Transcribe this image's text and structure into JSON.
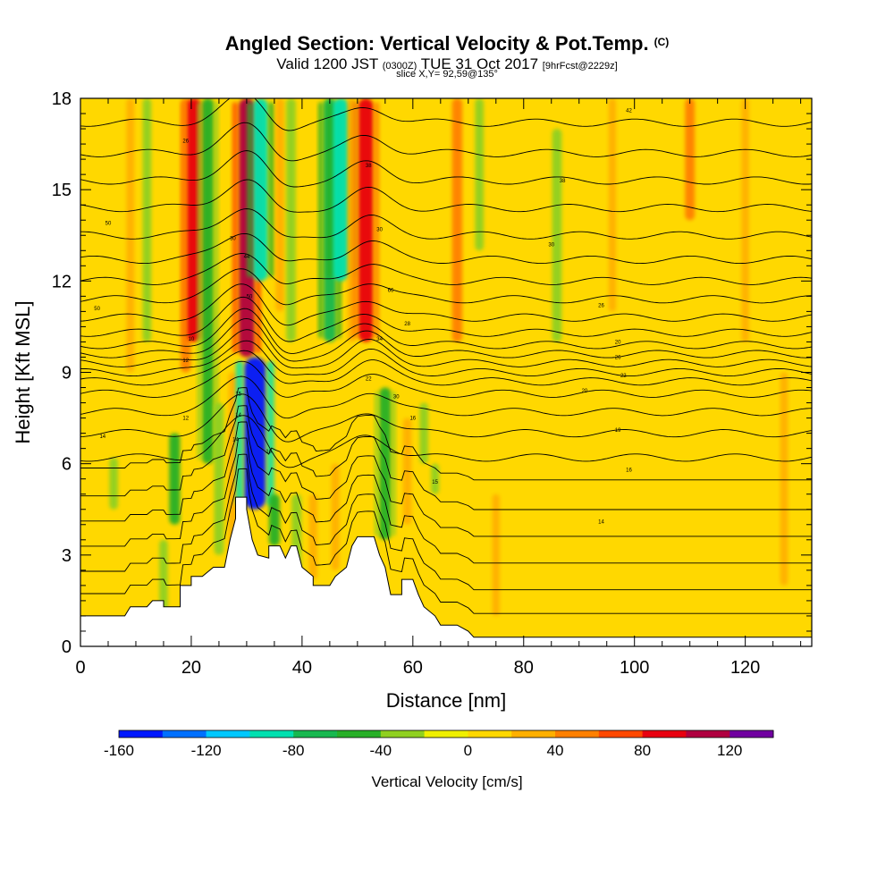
{
  "header": {
    "title": "Angled Section: Vertical Velocity & Pot.Temp.",
    "title_units": "(C)",
    "valid_prefix": "Valid 1200 JST",
    "valid_utc": "(0300Z)",
    "valid_date": "TUE 31 Oct 2017",
    "forecast": "[9hrFcst@2229z]",
    "slice": "slice X,Y= 92,59@135°"
  },
  "chart_data": {
    "type": "heatmap",
    "xlabel": "Distance [nm]",
    "ylabel": "Height [Kft MSL]",
    "xlim": [
      0,
      132
    ],
    "ylim": [
      0,
      18
    ],
    "x_ticks": [
      "0",
      "20",
      "40",
      "60",
      "80",
      "100",
      "120"
    ],
    "y_ticks": [
      "0",
      "3",
      "6",
      "9",
      "12",
      "15",
      "18"
    ],
    "colorbar": {
      "label": "Vertical Velocity [cm/s]",
      "ticks": [
        "-160",
        "-120",
        "-80",
        "-40",
        "0",
        "40",
        "80",
        "120"
      ],
      "bins": [
        -160,
        -140,
        -120,
        -100,
        -80,
        -60,
        -40,
        -20,
        0,
        20,
        40,
        60,
        80,
        100,
        120,
        140
      ],
      "colors": [
        "#0018ff",
        "#0070ff",
        "#00c8ff",
        "#00e0b0",
        "#18b850",
        "#28b028",
        "#90d020",
        "#f0f000",
        "#ffd800",
        "#ffb000",
        "#ff8000",
        "#ff4800",
        "#e80010",
        "#b00040",
        "#7000a0"
      ]
    },
    "background_level": 0,
    "terrain_profile": [
      [
        0,
        1
      ],
      [
        8,
        1
      ],
      [
        9,
        1.3
      ],
      [
        12,
        1.3
      ],
      [
        13,
        1.5
      ],
      [
        15,
        1.5
      ],
      [
        15,
        1.3
      ],
      [
        18,
        1.3
      ],
      [
        18,
        2
      ],
      [
        20,
        2
      ],
      [
        20,
        2.3
      ],
      [
        22,
        2.3
      ],
      [
        24,
        2.6
      ],
      [
        26,
        2.6
      ],
      [
        27,
        3.5
      ],
      [
        28,
        4.2
      ],
      [
        28,
        4.9
      ],
      [
        30,
        4.9
      ],
      [
        30,
        4.5
      ],
      [
        31,
        3.5
      ],
      [
        32,
        3
      ],
      [
        34,
        2.9
      ],
      [
        34,
        3.3
      ],
      [
        36,
        3.3
      ],
      [
        37,
        2.9
      ],
      [
        38,
        3.3
      ],
      [
        39,
        3.3
      ],
      [
        40,
        2.6
      ],
      [
        42,
        2.3
      ],
      [
        42,
        2
      ],
      [
        45,
        2
      ],
      [
        46,
        2.3
      ],
      [
        48,
        2.6
      ],
      [
        49,
        3.3
      ],
      [
        50,
        3.6
      ],
      [
        53,
        3.6
      ],
      [
        54,
        3
      ],
      [
        55,
        2.6
      ],
      [
        56,
        1.7
      ],
      [
        58,
        1.7
      ],
      [
        58,
        2.2
      ],
      [
        60,
        2.2
      ],
      [
        61,
        1.7
      ],
      [
        62,
        1.3
      ],
      [
        64,
        1
      ],
      [
        65,
        0.7
      ],
      [
        68,
        0.7
      ],
      [
        70,
        0.5
      ],
      [
        71,
        0.3
      ],
      [
        132,
        0.3
      ]
    ],
    "velocity_features": [
      {
        "x": 6,
        "zbot": 4.5,
        "ztop": 6.2,
        "v": -30
      },
      {
        "x": 9,
        "zbot": 9,
        "ztop": 18,
        "v": 25
      },
      {
        "x": 12,
        "zbot": 10,
        "ztop": 18,
        "v": -30
      },
      {
        "x": 15,
        "zbot": 1,
        "ztop": 3.5,
        "v": -30
      },
      {
        "x": 17,
        "zbot": 4,
        "ztop": 7,
        "v": -50
      },
      {
        "x": 19,
        "zbot": 9,
        "ztop": 18,
        "v": 45
      },
      {
        "x": 20.5,
        "zbot": 10,
        "ztop": 18,
        "v": 80
      },
      {
        "x": 23,
        "zbot": 6,
        "ztop": 18,
        "v": -60
      },
      {
        "x": 25,
        "zbot": 3,
        "ztop": 8,
        "v": -40
      },
      {
        "x": 27.5,
        "zbot": 3,
        "ztop": 9,
        "v": 30
      },
      {
        "x": 30,
        "zbot": 9.5,
        "ztop": 18,
        "v": 100
      },
      {
        "x": 31.5,
        "zbot": 4.5,
        "ztop": 9.5,
        "v": -150
      },
      {
        "x": 32.5,
        "zbot": 12,
        "ztop": 18,
        "v": -90
      },
      {
        "x": 35,
        "zbot": 3.3,
        "ztop": 5,
        "v": -50
      },
      {
        "x": 36,
        "zbot": 11,
        "ztop": 18,
        "v": 30
      },
      {
        "x": 38,
        "zbot": 10,
        "ztop": 18,
        "v": -40
      },
      {
        "x": 39,
        "zbot": 2.5,
        "ztop": 5,
        "v": -40
      },
      {
        "x": 42,
        "zbot": 2.2,
        "ztop": 5,
        "v": 30
      },
      {
        "x": 45,
        "zbot": 10,
        "ztop": 18,
        "v": -70
      },
      {
        "x": 46,
        "zbot": 2.5,
        "ztop": 6,
        "v": 25
      },
      {
        "x": 47,
        "zbot": 12,
        "ztop": 18,
        "v": -100
      },
      {
        "x": 49,
        "zbot": 10,
        "ztop": 18,
        "v": 30
      },
      {
        "x": 51.5,
        "zbot": 10,
        "ztop": 18,
        "v": 90
      },
      {
        "x": 55,
        "zbot": 3.5,
        "ztop": 8.5,
        "v": -60
      },
      {
        "x": 59,
        "zbot": 4,
        "ztop": 7.5,
        "v": 30
      },
      {
        "x": 62,
        "zbot": 6,
        "ztop": 8,
        "v": -30
      },
      {
        "x": 64,
        "zbot": 5,
        "ztop": 6,
        "v": -25
      },
      {
        "x": 68,
        "zbot": 10,
        "ztop": 18,
        "v": 45
      },
      {
        "x": 72,
        "zbot": 13,
        "ztop": 18,
        "v": -30
      },
      {
        "x": 75,
        "zbot": 1,
        "ztop": 5,
        "v": 20
      },
      {
        "x": 86,
        "zbot": 10,
        "ztop": 17,
        "v": -40
      },
      {
        "x": 96,
        "zbot": 11,
        "ztop": 18,
        "v": 20
      },
      {
        "x": 110,
        "zbot": 14,
        "ztop": 18,
        "v": 40
      },
      {
        "x": 120,
        "zbot": 10,
        "ztop": 18,
        "v": 20
      },
      {
        "x": 127,
        "zbot": 2,
        "ztop": 9,
        "v": 20
      }
    ],
    "theta_contour_levels": [
      0.8,
      1.6,
      2.5,
      3.4,
      4.3,
      5.3,
      6.2,
      7.0,
      7.7,
      8.3,
      8.7,
      9.0,
      9.3,
      9.6,
      9.9,
      10.3,
      10.8,
      11.4,
      12.0,
      12.7,
      13.5,
      14.4,
      15.3,
      16.2,
      17.2
    ],
    "contour_labels": [
      {
        "x": 5,
        "z": 13.9,
        "text": "50"
      },
      {
        "x": 3,
        "z": 11.1,
        "text": "50"
      },
      {
        "x": 19,
        "z": 16.6,
        "text": "26"
      },
      {
        "x": 27.5,
        "z": 13.4,
        "text": "30"
      },
      {
        "x": 30,
        "z": 12.8,
        "text": "44"
      },
      {
        "x": 30.5,
        "z": 11.5,
        "text": "50"
      },
      {
        "x": 52,
        "z": 15.8,
        "text": "38"
      },
      {
        "x": 54,
        "z": 13.7,
        "text": "30"
      },
      {
        "x": 56,
        "z": 11.7,
        "text": "66"
      },
      {
        "x": 54,
        "z": 10.1,
        "text": "34"
      },
      {
        "x": 59,
        "z": 10.6,
        "text": "28"
      },
      {
        "x": 52,
        "z": 8.8,
        "text": "22"
      },
      {
        "x": 57,
        "z": 8.2,
        "text": "30"
      },
      {
        "x": 60,
        "z": 7.5,
        "text": "16"
      },
      {
        "x": 64,
        "z": 5.4,
        "text": "15"
      },
      {
        "x": 69,
        "z": 16.3,
        "text": ""
      },
      {
        "x": 87,
        "z": 15.3,
        "text": "38"
      },
      {
        "x": 85,
        "z": 13.2,
        "text": "30"
      },
      {
        "x": 94,
        "z": 11.2,
        "text": "26"
      },
      {
        "x": 97,
        "z": 10.0,
        "text": "20"
      },
      {
        "x": 97,
        "z": 9.5,
        "text": "26"
      },
      {
        "x": 98,
        "z": 8.9,
        "text": "22"
      },
      {
        "x": 91,
        "z": 8.4,
        "text": "20"
      },
      {
        "x": 97,
        "z": 7.1,
        "text": "19"
      },
      {
        "x": 99,
        "z": 5.8,
        "text": "16"
      },
      {
        "x": 94,
        "z": 4.1,
        "text": "14"
      },
      {
        "x": 20,
        "z": 10.1,
        "text": "10"
      },
      {
        "x": 19,
        "z": 9.4,
        "text": "12"
      },
      {
        "x": 19,
        "z": 7.5,
        "text": "12"
      },
      {
        "x": 4,
        "z": 6.9,
        "text": "14"
      },
      {
        "x": 28.5,
        "z": 8.3,
        "text": "15"
      },
      {
        "x": 28.5,
        "z": 7.6,
        "text": "14"
      },
      {
        "x": 28,
        "z": 6.8,
        "text": "14"
      },
      {
        "x": 34,
        "z": 6.4,
        "text": "10"
      },
      {
        "x": 99,
        "z": 17.6,
        "text": "42"
      }
    ]
  }
}
